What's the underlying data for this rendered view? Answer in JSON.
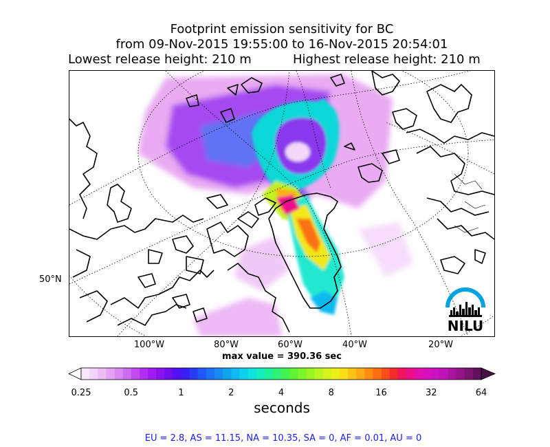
{
  "title": {
    "line1": "Footprint emission sensitivity for BC",
    "line2": "from 09-Nov-2015 19:55:00 to 16-Nov-2015 20:54:01",
    "lowest": "Lowest release height: 210 m",
    "highest": "Highest release height: 210 m"
  },
  "map": {
    "projection": "north-polar-stereographic",
    "lon_labels": [
      "100°W",
      "80°W",
      "60°W",
      "40°W",
      "20°W"
    ],
    "lat_labels": [
      "50°N"
    ],
    "max_value_text": "max value = 390.36 sec"
  },
  "colorbar": {
    "ticks": [
      "0.25",
      "0.5",
      "1",
      "2",
      "4",
      "8",
      "16",
      "32",
      "64"
    ],
    "label": "seconds",
    "colors": [
      "#f7e8fb",
      "#f2d3f9",
      "#ecbdf5",
      "#e3a3f2",
      "#d98af0",
      "#cd6def",
      "#c24bee",
      "#b22ff0",
      "#a01df0",
      "#8a12ee",
      "#6f0ff0",
      "#5410f4",
      "#3a1ff6",
      "#2a3af5",
      "#2157f5",
      "#1b72f3",
      "#168bf1",
      "#12a3ef",
      "#0fbaee",
      "#0dd0ec",
      "#0fe3e0",
      "#14edc0",
      "#1ff09a",
      "#2ef276",
      "#42f253",
      "#5df337",
      "#7cf42a",
      "#9af523",
      "#b8f61f",
      "#d3f41c",
      "#eaee19",
      "#f9dd16",
      "#fcc314",
      "#fca913",
      "#fc8d12",
      "#fb6f13",
      "#f94d1a",
      "#f52a2a",
      "#f1135c",
      "#ec0f89",
      "#e30fa8",
      "#d90fbe",
      "#cc10c4",
      "#bd12b5",
      "#a9149e",
      "#921587",
      "#7a1470",
      "#62125a"
    ],
    "under_color": "#ffffff",
    "over_color": "#4a0f45"
  },
  "footer": "EU = 2.8,  AS = 11.15,  NA = 10.35,  SA = 0,  AF = 0.01,  AU = 0",
  "logo": {
    "text": "NILU",
    "arc_color": "#00a3e0"
  }
}
